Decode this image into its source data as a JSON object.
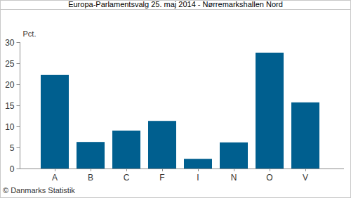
{
  "chart_data": {
    "type": "bar",
    "title": "Europa-Parlamentsvalg 25. maj 2014 - Nørremarkshallen Nord",
    "y_label": "Pct.",
    "source": "© Danmarks Statistik",
    "categories": [
      "A",
      "B",
      "C",
      "F",
      "I",
      "N",
      "O",
      "V"
    ],
    "values": [
      22.2,
      6.3,
      9.0,
      11.3,
      2.3,
      6.2,
      27.5,
      15.7
    ],
    "color": "#005f8f",
    "ylim": [
      0,
      30
    ],
    "yticks": [
      0,
      5,
      10,
      15,
      20,
      25,
      30
    ],
    "grid": false
  }
}
